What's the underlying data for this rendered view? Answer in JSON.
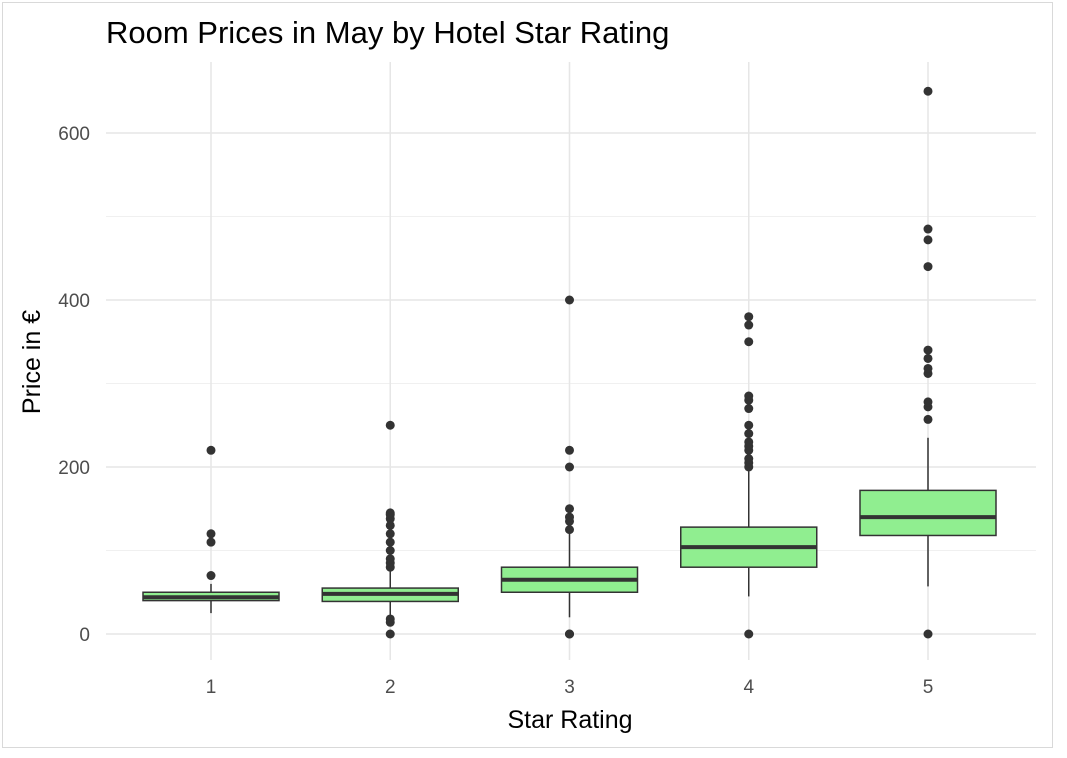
{
  "chart_data": {
    "type": "boxplot",
    "title": "Room Prices in May by Hotel Star Rating",
    "xlabel": "Star Rating",
    "ylabel": "Price in €",
    "categories": [
      "1",
      "2",
      "3",
      "4",
      "5"
    ],
    "ylim": [
      -25,
      685
    ],
    "yticks": [
      0,
      200,
      400,
      600
    ],
    "grid": true,
    "box_fill": "#90ee90",
    "box_stroke": "#333333",
    "boxes": [
      {
        "category": "1",
        "whisker_low": 25,
        "q1": 40,
        "median": 44,
        "q3": 50,
        "whisker_high": 60,
        "outliers": [
          70,
          110,
          120,
          220
        ]
      },
      {
        "category": "2",
        "whisker_low": 20,
        "q1": 39,
        "median": 48,
        "q3": 55,
        "whisker_high": 75,
        "outliers": [
          0,
          14,
          18,
          80,
          85,
          90,
          100,
          110,
          120,
          130,
          138,
          143,
          145,
          250
        ]
      },
      {
        "category": "3",
        "whisker_low": 20,
        "q1": 50,
        "median": 65,
        "q3": 80,
        "whisker_high": 120,
        "outliers": [
          0,
          0,
          125,
          135,
          140,
          150,
          200,
          220,
          400
        ]
      },
      {
        "category": "4",
        "whisker_low": 45,
        "q1": 80,
        "median": 104,
        "q3": 128,
        "whisker_high": 195,
        "outliers": [
          0,
          200,
          205,
          210,
          220,
          225,
          230,
          240,
          250,
          270,
          280,
          285,
          350,
          370,
          380
        ]
      },
      {
        "category": "5",
        "whisker_low": 57,
        "q1": 118,
        "median": 140,
        "q3": 172,
        "whisker_high": 235,
        "outliers": [
          0,
          257,
          272,
          278,
          312,
          318,
          330,
          340,
          440,
          472,
          485,
          650
        ]
      }
    ]
  }
}
